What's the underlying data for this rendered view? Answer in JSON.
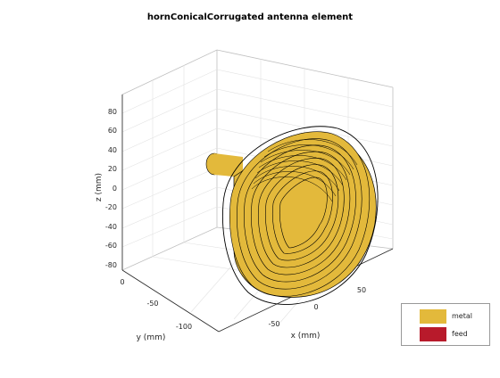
{
  "title": "hornConicalCorrugated antenna element",
  "axes": {
    "x": {
      "label": "x (mm)",
      "ticks": [
        "-50",
        "0",
        "50"
      ]
    },
    "y": {
      "label": "y (mm)",
      "ticks": [
        "0",
        "-50",
        "-100"
      ]
    },
    "z": {
      "label": "z (mm)",
      "ticks": [
        "80",
        "60",
        "40",
        "20",
        "0",
        "-20",
        "-40",
        "-60",
        "-80"
      ]
    }
  },
  "legend": {
    "items": [
      {
        "label": "metal",
        "color": "#e3b93b"
      },
      {
        "label": "feed",
        "color": "#b81a2b"
      }
    ]
  },
  "colors": {
    "metal": "#e3b93b",
    "edge": "#000000",
    "grid": "#dcdcdc",
    "box": "#bfbfbf"
  }
}
